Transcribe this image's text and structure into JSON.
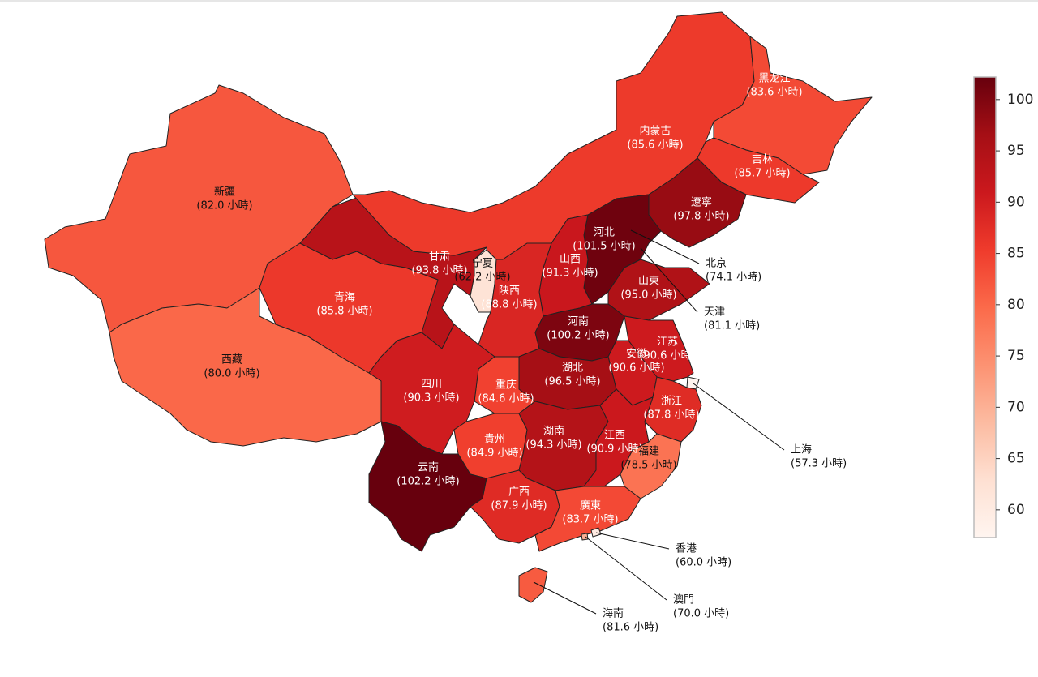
{
  "chart_data": {
    "type": "choropleth",
    "categories": [
      "新疆",
      "西藏",
      "青海",
      "甘肃",
      "宁夏",
      "内蒙古",
      "黑龙江",
      "吉林",
      "遼寧",
      "北京",
      "天津",
      "河北",
      "山西",
      "陕西",
      "山東",
      "河南",
      "江苏",
      "安徽",
      "上海",
      "浙江",
      "湖北",
      "重庆",
      "四川",
      "貴州",
      "云南",
      "湖南",
      "江西",
      "福建",
      "广西",
      "廣東",
      "香港",
      "澳門",
      "海南"
    ],
    "values": [
      82.0,
      80.0,
      85.8,
      93.8,
      62.2,
      85.6,
      83.6,
      85.7,
      97.8,
      74.1,
      81.1,
      101.5,
      91.3,
      88.8,
      95.0,
      100.2,
      90.6,
      90.6,
      57.3,
      87.8,
      96.5,
      84.6,
      90.3,
      84.9,
      102.2,
      94.3,
      90.9,
      78.5,
      87.9,
      83.7,
      60.0,
      70.0,
      81.6
    ],
    "value_labels": [
      "(82.0 小時)",
      "(80.0 小時)",
      "(85.8 小時)",
      "(93.8 小時)",
      "(62.2 小時)",
      "(85.6 小時)",
      "(83.6 小時)",
      "(85.7 小時)",
      "(97.8 小時)",
      "(74.1 小時)",
      "(81.1 小時)",
      "(101.5 小時)",
      "(91.3 小時)",
      "(88.8 小時)",
      "(95.0 小時)",
      "(100.2 小時)",
      "(90.6 小時)",
      "(90.6 小時)",
      "(57.3 小時)",
      "(87.8 小時)",
      "(96.5 小時)",
      "(84.6 小時)",
      "(90.3 小時)",
      "(84.9 小時)",
      "(102.2 小時)",
      "(94.3 小時)",
      "(90.9 小時)",
      "(78.5 小時)",
      "(87.9 小時)",
      "(83.7 小時)",
      "(60.0 小時)",
      "(70.0 小時)",
      "(81.6 小時)"
    ],
    "clim": [
      57.3,
      102.2
    ],
    "cticks": [
      60,
      65,
      70,
      75,
      80,
      85,
      90,
      95,
      100
    ],
    "colormap": [
      "#fff5f0",
      "#fee0d2",
      "#fcbba1",
      "#fc9272",
      "#fb6a4a",
      "#ef3b2c",
      "#cb181d",
      "#a50f15",
      "#67000d"
    ]
  }
}
